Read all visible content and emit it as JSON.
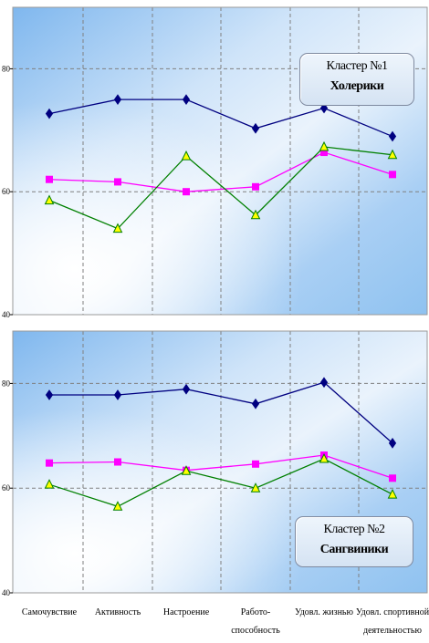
{
  "chart_data": [
    {
      "type": "line",
      "categories": [
        "Самочувствие",
        "Активность",
        "Настроение",
        "Работо-способность",
        "Удовл. жизнью",
        "Удовл. спортивной деятельностью"
      ],
      "ylim": [
        40,
        90
      ],
      "yticks": [
        40,
        60,
        80
      ],
      "grid": true,
      "legend_title": "Кластер №1",
      "legend_subtitle": "Холерики",
      "legend_position": "top-right",
      "series": [
        {
          "marker": "diamond",
          "color": "#000080",
          "values": [
            72.7,
            75.0,
            75.0,
            70.3,
            73.6,
            69.0
          ]
        },
        {
          "marker": "square",
          "color": "#ff00ff",
          "values": [
            62.0,
            61.6,
            60.0,
            60.8,
            66.4,
            62.8
          ]
        },
        {
          "marker": "triangle",
          "color": "#008000",
          "values": [
            58.6,
            54.0,
            65.8,
            56.2,
            67.3,
            66.0
          ]
        }
      ]
    },
    {
      "type": "line",
      "categories": [
        "Самочувствие",
        "Активность",
        "Настроение",
        "Работо-способность",
        "Удовл. жизнью",
        "Удовл. спортивной деятельностью"
      ],
      "ylim": [
        40,
        90
      ],
      "yticks": [
        40,
        60,
        80
      ],
      "grid": true,
      "legend_title": "Кластер №2",
      "legend_subtitle": "Сангвиники",
      "legend_position": "bottom-right",
      "series": [
        {
          "marker": "diamond",
          "color": "#000080",
          "values": [
            77.8,
            77.8,
            78.9,
            76.1,
            80.2,
            68.6
          ]
        },
        {
          "marker": "square",
          "color": "#ff00ff",
          "values": [
            64.8,
            65.0,
            63.4,
            64.6,
            66.3,
            61.9
          ]
        },
        {
          "marker": "triangle",
          "color": "#008000",
          "values": [
            60.7,
            56.5,
            63.3,
            60.0,
            65.6,
            58.8
          ]
        }
      ]
    }
  ],
  "x_labels": [
    {
      "line1": "Самочувствие",
      "line2": ""
    },
    {
      "line1": "Активность",
      "line2": ""
    },
    {
      "line1": "Настроение",
      "line2": ""
    },
    {
      "line1": "Работо-",
      "line2": "способность"
    },
    {
      "line1": "Удовл. жизнью",
      "line2": ""
    },
    {
      "line1": "Удовл. спортивной",
      "line2": "деятельностью"
    }
  ],
  "colors": {
    "plot_light": "#ffffff",
    "plot_blue": "#8fc2f0",
    "grid": "#808080",
    "axis": "#000000"
  }
}
